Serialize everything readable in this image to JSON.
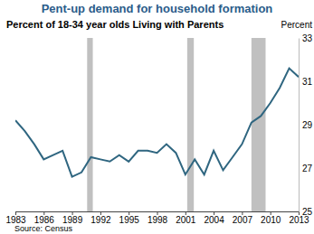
{
  "chart_data": {
    "type": "line",
    "title": "Pent-up demand for household formation",
    "subtitle": "Percent of 18-34 year olds Living with Parents",
    "y_label": "Percent",
    "source": "Source: Census",
    "x": [
      1983,
      1984,
      1985,
      1986,
      1987,
      1988,
      1989,
      1990,
      1991,
      1992,
      1993,
      1994,
      1995,
      1996,
      1997,
      1998,
      1999,
      2000,
      2001,
      2002,
      2003,
      2004,
      2005,
      2006,
      2007,
      2008,
      2009,
      2010,
      2011,
      2012,
      2013
    ],
    "values": [
      29.2,
      28.7,
      28.1,
      27.4,
      27.6,
      27.8,
      26.6,
      26.8,
      27.5,
      27.4,
      27.3,
      27.6,
      27.3,
      27.8,
      27.8,
      27.7,
      28.1,
      27.7,
      26.7,
      27.4,
      26.7,
      27.8,
      26.9,
      27.5,
      28.1,
      29.1,
      29.4,
      30.0,
      30.7,
      31.6,
      31.2
    ],
    "color": "#2f6680",
    "xlim": [
      1983,
      2013
    ],
    "xticks": [
      1983,
      1986,
      1989,
      1992,
      1995,
      1998,
      2001,
      2004,
      2007,
      2010,
      2013
    ],
    "ylim": [
      25,
      33
    ],
    "yticks": [
      25,
      27,
      29,
      31,
      33
    ],
    "grid": false,
    "recession_bands": [
      [
        1990.6,
        1991.2
      ],
      [
        2001.2,
        2001.9
      ],
      [
        2008.0,
        2009.5
      ]
    ]
  }
}
